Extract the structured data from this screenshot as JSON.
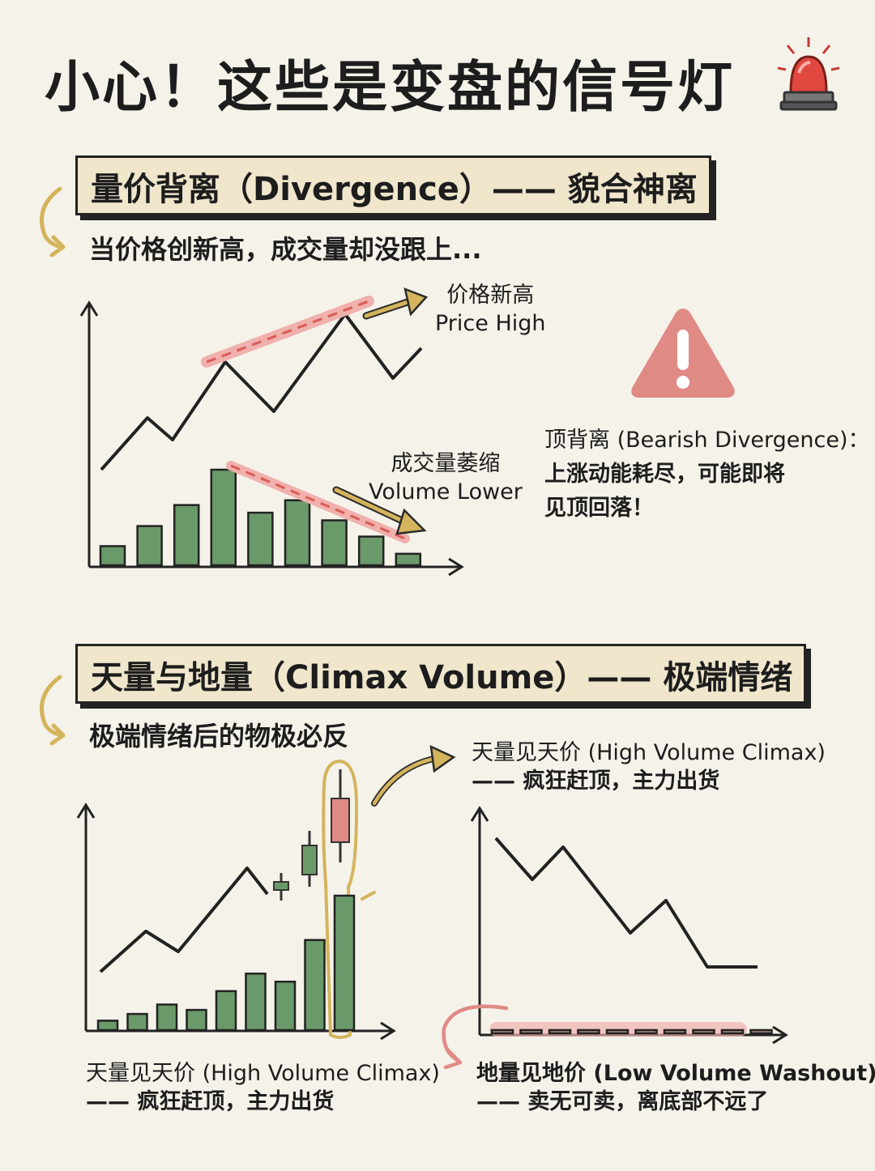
{
  "title": "小心！这些是变盘的信号灯",
  "icons": {
    "title_icon": "siren-icon",
    "warning_icon": "warning-triangle-icon"
  },
  "colors": {
    "bar_green": "#6b9a6a",
    "red_mark": "#e08a86",
    "gold": "#d4b45c",
    "box_bg": "#efe6cc"
  },
  "section1": {
    "heading": "量价背离（Divergence）—— 貌合神离",
    "intro": "当价格创新高，成交量却没跟上...",
    "price_label_cn": "价格新高",
    "price_label_en": "Price High",
    "volume_label_cn": "成交量萎缩",
    "volume_label_en": "Volume Lower",
    "note_title": "顶背离 (Bearish Divergence)：",
    "note_line1": "上涨动能耗尽，可能即将",
    "note_line2": "见顶回落！",
    "volume_bars": [
      0.2,
      0.41,
      0.63,
      1.0,
      0.55,
      0.68,
      0.47,
      0.3,
      0.12
    ]
  },
  "section2": {
    "heading": "天量与地量（Climax Volume）—— 极端情绪",
    "intro": "极端情绪后的物极必反",
    "top_label_line1": "天量见天价 (High Volume Climax)",
    "top_label_line2": "—— 疯狂赶顶，主力出货",
    "left_caption_line1": "天量见天价 (High Volume Climax)",
    "left_caption_line2": "—— 疯狂赶顶，主力出货",
    "right_caption_line1": "地量见地价 (Low Volume Washout)",
    "right_caption_line2": "—— 卖无可卖，离底部不远了",
    "left_volume_bars": [
      0.07,
      0.12,
      0.19,
      0.15,
      0.29,
      0.42,
      0.36,
      0.67,
      1.0
    ],
    "right_volume_bars": [
      0.09,
      0.09,
      0.09,
      0.08,
      0.07,
      0.05,
      0.04,
      0.03,
      0.03,
      0.03
    ]
  }
}
